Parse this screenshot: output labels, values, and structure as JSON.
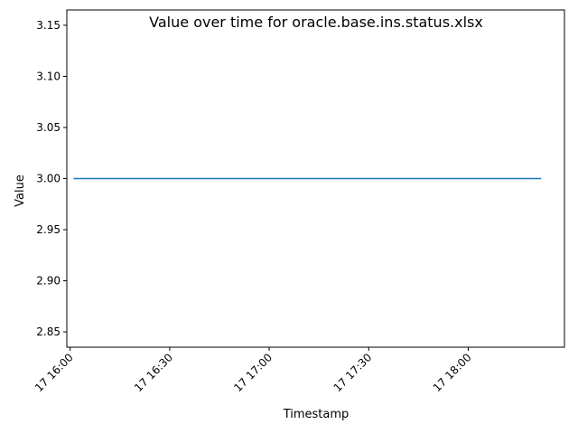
{
  "chart_data": {
    "type": "line",
    "title": "Value over time for oracle.base.ins.status.xlsx",
    "xlabel": "Timestamp",
    "ylabel": "Value",
    "x_tick_labels": [
      "17 16:00",
      "17 16:30",
      "17 17:00",
      "17 17:30",
      "17 18:00"
    ],
    "y_tick_labels": [
      "2.85",
      "2.90",
      "2.95",
      "3.00",
      "3.05",
      "3.10",
      "3.15"
    ],
    "y_ticks": [
      2.85,
      2.9,
      2.95,
      3.0,
      3.05,
      3.1,
      3.15
    ],
    "ylim": [
      2.835,
      3.165
    ],
    "xlim": [
      "17 15:59",
      "17 18:29"
    ],
    "x_ticks": [
      "17 16:00",
      "17 16:30",
      "17 17:00",
      "17 17:30",
      "17 18:00"
    ],
    "grid": false,
    "series": [
      {
        "color": "#1f77b4",
        "points": [
          {
            "x": "17 16:01",
            "y": 3.0
          },
          {
            "x": "17 18:22",
            "y": 3.0
          }
        ]
      }
    ]
  }
}
